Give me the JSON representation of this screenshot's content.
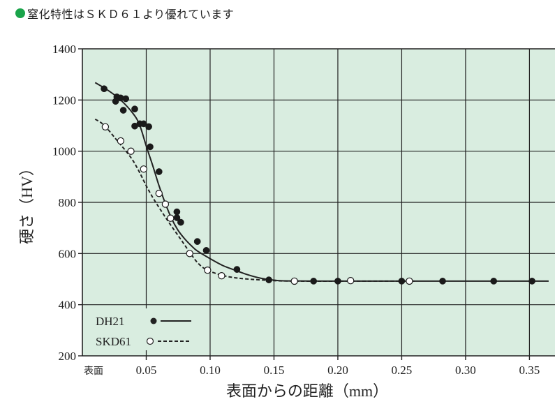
{
  "heading": {
    "text": "窒化特性はＳＫＤ６１より優れています",
    "bullet_color": "#1aa44a"
  },
  "chart_data": {
    "type": "line",
    "title": "",
    "xlabel": "表面からの距離（mm）",
    "ylabel": "硬さ（HV）",
    "xlim": [
      0,
      0.37
    ],
    "ylim": [
      200,
      1400
    ],
    "x_ticks": [
      {
        "value": 0,
        "label": "表面"
      },
      {
        "value": 0.05,
        "label": "0.05"
      },
      {
        "value": 0.1,
        "label": "0.10"
      },
      {
        "value": 0.15,
        "label": "0.15"
      },
      {
        "value": 0.2,
        "label": "0.20"
      },
      {
        "value": 0.25,
        "label": "0.25"
      },
      {
        "value": 0.3,
        "label": "0.30"
      },
      {
        "value": 0.35,
        "label": "0.35"
      }
    ],
    "y_ticks": [
      200,
      400,
      600,
      800,
      1000,
      1200,
      1400
    ],
    "grid": true,
    "background_color": "#d9ede0",
    "legend_position": "bottom-left",
    "series": [
      {
        "name": "DH21",
        "marker": "filled-circle",
        "line_style": "solid",
        "curve": [
          [
            0.01,
            1268
          ],
          [
            0.02,
            1238
          ],
          [
            0.03,
            1200
          ],
          [
            0.04,
            1145
          ],
          [
            0.045,
            1100
          ],
          [
            0.05,
            1020
          ],
          [
            0.055,
            945
          ],
          [
            0.06,
            865
          ],
          [
            0.065,
            795
          ],
          [
            0.07,
            735
          ],
          [
            0.075,
            690
          ],
          [
            0.08,
            658
          ],
          [
            0.085,
            632
          ],
          [
            0.09,
            610
          ],
          [
            0.1,
            580
          ],
          [
            0.11,
            553
          ],
          [
            0.12,
            534
          ],
          [
            0.13,
            516
          ],
          [
            0.14,
            503
          ],
          [
            0.15,
            496
          ],
          [
            0.16,
            493
          ],
          [
            0.2,
            492
          ],
          [
            0.25,
            492
          ],
          [
            0.3,
            492
          ],
          [
            0.35,
            492
          ],
          [
            0.365,
            492
          ]
        ],
        "points": [
          [
            0.017,
            1244
          ],
          [
            0.026,
            1195
          ],
          [
            0.027,
            1212
          ],
          [
            0.03,
            1208
          ],
          [
            0.032,
            1160
          ],
          [
            0.034,
            1205
          ],
          [
            0.041,
            1165
          ],
          [
            0.041,
            1098
          ],
          [
            0.045,
            1107
          ],
          [
            0.048,
            1107
          ],
          [
            0.052,
            1096
          ],
          [
            0.053,
            1017
          ],
          [
            0.06,
            920
          ],
          [
            0.074,
            763
          ],
          [
            0.074,
            740
          ],
          [
            0.077,
            722
          ],
          [
            0.09,
            647
          ],
          [
            0.097,
            612
          ],
          [
            0.121,
            538
          ],
          [
            0.146,
            497
          ],
          [
            0.181,
            492
          ],
          [
            0.2,
            492
          ],
          [
            0.25,
            492
          ],
          [
            0.282,
            492
          ],
          [
            0.322,
            492
          ],
          [
            0.352,
            492
          ]
        ]
      },
      {
        "name": "SKD61",
        "marker": "open-circle",
        "line_style": "dashed",
        "curve": [
          [
            0.01,
            1125
          ],
          [
            0.015,
            1110
          ],
          [
            0.02,
            1085
          ],
          [
            0.025,
            1055
          ],
          [
            0.03,
            1025
          ],
          [
            0.035,
            995
          ],
          [
            0.04,
            960
          ],
          [
            0.045,
            915
          ],
          [
            0.05,
            865
          ],
          [
            0.055,
            820
          ],
          [
            0.06,
            780
          ],
          [
            0.065,
            742
          ],
          [
            0.07,
            705
          ],
          [
            0.075,
            670
          ],
          [
            0.08,
            634
          ],
          [
            0.085,
            598
          ],
          [
            0.09,
            565
          ],
          [
            0.095,
            543
          ],
          [
            0.1,
            530
          ],
          [
            0.11,
            514
          ],
          [
            0.12,
            505
          ],
          [
            0.13,
            500
          ],
          [
            0.15,
            494
          ],
          [
            0.17,
            492
          ],
          [
            0.21,
            492
          ],
          [
            0.26,
            492
          ]
        ],
        "points": [
          [
            0.018,
            1095
          ],
          [
            0.03,
            1040
          ],
          [
            0.038,
            1000
          ],
          [
            0.048,
            930
          ],
          [
            0.06,
            835
          ],
          [
            0.065,
            793
          ],
          [
            0.069,
            738
          ],
          [
            0.084,
            600
          ],
          [
            0.098,
            535
          ],
          [
            0.109,
            513
          ],
          [
            0.166,
            492
          ],
          [
            0.21,
            494
          ],
          [
            0.256,
            492
          ]
        ]
      }
    ]
  }
}
